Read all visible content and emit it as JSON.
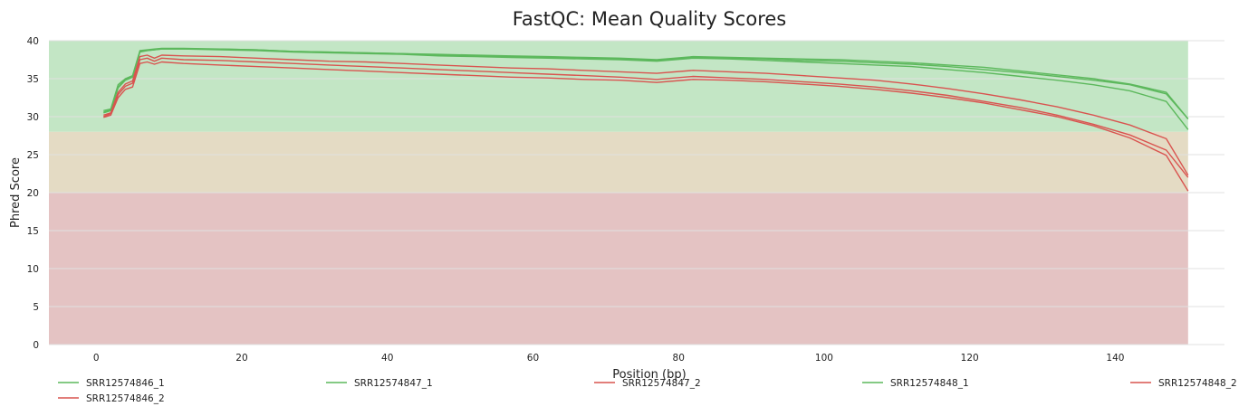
{
  "chart_data": {
    "type": "line",
    "title": "FastQC: Mean Quality Scores",
    "xlabel": "Position (bp)",
    "ylabel": "Phred Score",
    "xlim": [
      -6.5,
      155
    ],
    "ylim": [
      0,
      40
    ],
    "xticks": [
      0,
      20,
      40,
      60,
      80,
      100,
      120,
      140
    ],
    "yticks": [
      0,
      5,
      10,
      15,
      20,
      25,
      30,
      35,
      40
    ],
    "grid": true,
    "legend_position": "bottom",
    "background_bands": [
      {
        "name": "good",
        "from": 28,
        "to": 40,
        "color": "#c3e6c5"
      },
      {
        "name": "warning",
        "from": 20,
        "to": 28,
        "color": "#e4dbc4"
      },
      {
        "name": "fail",
        "from": 0,
        "to": 20,
        "color": "#e4c3c3"
      }
    ],
    "plot_end_x": 150,
    "colors": {
      "pass": "#5cb85c",
      "fail": "#d9534f"
    },
    "x": [
      1,
      2,
      3,
      4,
      5,
      6,
      7,
      8,
      9,
      12,
      17,
      22,
      27,
      32,
      37,
      42,
      47,
      52,
      57,
      62,
      67,
      72,
      77,
      82,
      87,
      92,
      97,
      102,
      107,
      112,
      117,
      122,
      127,
      132,
      137,
      142,
      147,
      150
    ],
    "series": [
      {
        "name": "SRR12574846_1",
        "status": "pass",
        "values": [
          30.5,
          30.8,
          33.8,
          34.8,
          35.2,
          38.5,
          38.7,
          38.8,
          38.9,
          38.9,
          38.9,
          38.8,
          38.6,
          38.5,
          38.4,
          38.3,
          38.2,
          38.1,
          38.0,
          37.9,
          37.8,
          37.7,
          37.5,
          37.9,
          37.8,
          37.7,
          37.6,
          37.5,
          37.3,
          37.1,
          36.8,
          36.5,
          36.0,
          35.5,
          35.0,
          34.3,
          33.2,
          29.7
        ]
      },
      {
        "name": "SRR12574847_1",
        "status": "pass",
        "values": [
          30.8,
          31.0,
          34.2,
          35.0,
          35.4,
          38.7,
          38.8,
          38.9,
          39.0,
          39.0,
          38.9,
          38.8,
          38.6,
          38.5,
          38.4,
          38.3,
          38.1,
          38.0,
          37.9,
          37.8,
          37.7,
          37.6,
          37.4,
          37.8,
          37.7,
          37.6,
          37.4,
          37.3,
          37.1,
          36.9,
          36.6,
          36.2,
          35.8,
          35.3,
          34.8,
          34.2,
          33.0,
          29.7
        ]
      },
      {
        "name": "SRR12574848_1",
        "status": "pass",
        "values": [
          30.6,
          30.9,
          33.9,
          34.9,
          35.3,
          38.6,
          38.7,
          38.8,
          38.9,
          38.9,
          38.8,
          38.7,
          38.5,
          38.4,
          38.3,
          38.2,
          38.0,
          37.9,
          37.8,
          37.7,
          37.6,
          37.5,
          37.3,
          37.7,
          37.6,
          37.4,
          37.2,
          37.0,
          36.8,
          36.6,
          36.2,
          35.8,
          35.3,
          34.8,
          34.2,
          33.4,
          32.0,
          28.3
        ]
      },
      {
        "name": "SRR12574846_2",
        "status": "fail",
        "values": [
          29.9,
          30.2,
          32.5,
          33.6,
          33.9,
          37.0,
          37.2,
          36.9,
          37.2,
          37.0,
          36.8,
          36.6,
          36.4,
          36.2,
          36.0,
          35.8,
          35.6,
          35.4,
          35.2,
          35.1,
          34.9,
          34.8,
          34.5,
          34.9,
          34.8,
          34.6,
          34.3,
          34.0,
          33.6,
          33.1,
          32.5,
          31.8,
          30.9,
          30.0,
          28.8,
          27.2,
          24.9,
          20.2
        ]
      },
      {
        "name": "SRR12574847_2",
        "status": "fail",
        "values": [
          30.2,
          30.5,
          33.2,
          34.3,
          34.7,
          37.9,
          38.1,
          37.7,
          38.1,
          38.0,
          37.9,
          37.7,
          37.5,
          37.3,
          37.2,
          37.0,
          36.8,
          36.6,
          36.4,
          36.3,
          36.1,
          35.9,
          35.7,
          36.1,
          35.9,
          35.7,
          35.4,
          35.1,
          34.8,
          34.3,
          33.7,
          33.0,
          32.2,
          31.3,
          30.2,
          28.9,
          27.1,
          22.3
        ]
      },
      {
        "name": "SRR12574848_2",
        "status": "fail",
        "values": [
          30.0,
          30.4,
          32.9,
          34.0,
          34.4,
          37.5,
          37.7,
          37.3,
          37.7,
          37.5,
          37.4,
          37.2,
          37.0,
          36.8,
          36.6,
          36.4,
          36.2,
          36.0,
          35.8,
          35.6,
          35.4,
          35.2,
          34.9,
          35.3,
          35.1,
          34.9,
          34.6,
          34.3,
          33.9,
          33.4,
          32.8,
          32.0,
          31.2,
          30.2,
          29.0,
          27.6,
          25.6,
          22.0
        ]
      }
    ],
    "legend": [
      {
        "name": "SRR12574846_1",
        "status": "pass"
      },
      {
        "name": "SRR12574847_1",
        "status": "pass"
      },
      {
        "name": "SRR12574847_2",
        "status": "fail"
      },
      {
        "name": "SRR12574848_1",
        "status": "pass"
      },
      {
        "name": "SRR12574848_2",
        "status": "fail"
      },
      {
        "name": "SRR12574846_2",
        "status": "fail"
      }
    ]
  }
}
